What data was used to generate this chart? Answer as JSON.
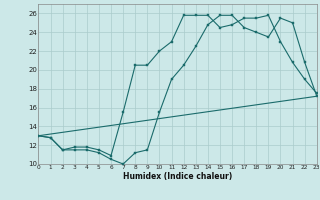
{
  "xlabel": "Humidex (Indice chaleur)",
  "xlim": [
    0,
    23
  ],
  "ylim": [
    10,
    27
  ],
  "xticks": [
    0,
    1,
    2,
    3,
    4,
    5,
    6,
    7,
    8,
    9,
    10,
    11,
    12,
    13,
    14,
    15,
    16,
    17,
    18,
    19,
    20,
    21,
    22,
    23
  ],
  "yticks": [
    10,
    12,
    14,
    16,
    18,
    20,
    22,
    24,
    26
  ],
  "bg_color": "#cce8e8",
  "grid_color": "#aacccc",
  "line_color": "#1a6b6b",
  "line1_x": [
    0,
    1,
    2,
    3,
    4,
    5,
    6,
    7,
    8,
    9,
    10,
    11,
    12,
    13,
    14,
    15,
    16,
    17,
    18,
    19,
    20,
    21,
    22,
    23
  ],
  "line1_y": [
    13.0,
    12.8,
    11.5,
    11.5,
    11.5,
    11.2,
    10.5,
    10.0,
    11.2,
    11.5,
    15.5,
    19.0,
    20.5,
    22.5,
    24.8,
    25.8,
    25.8,
    24.5,
    24.0,
    23.5,
    25.5,
    25.0,
    20.8,
    17.2
  ],
  "line2_x": [
    0,
    1,
    2,
    3,
    4,
    5,
    6,
    7,
    8,
    9,
    10,
    11,
    12,
    13,
    14,
    15,
    16,
    17,
    18,
    19,
    20,
    21,
    22,
    23
  ],
  "line2_y": [
    13.0,
    12.8,
    11.5,
    11.8,
    11.8,
    11.5,
    10.9,
    15.5,
    20.5,
    20.5,
    22.0,
    23.0,
    25.8,
    25.8,
    25.8,
    24.5,
    24.8,
    25.5,
    25.5,
    25.8,
    23.0,
    20.8,
    19.0,
    17.5
  ],
  "line3_x": [
    0,
    23
  ],
  "line3_y": [
    13.0,
    17.2
  ]
}
